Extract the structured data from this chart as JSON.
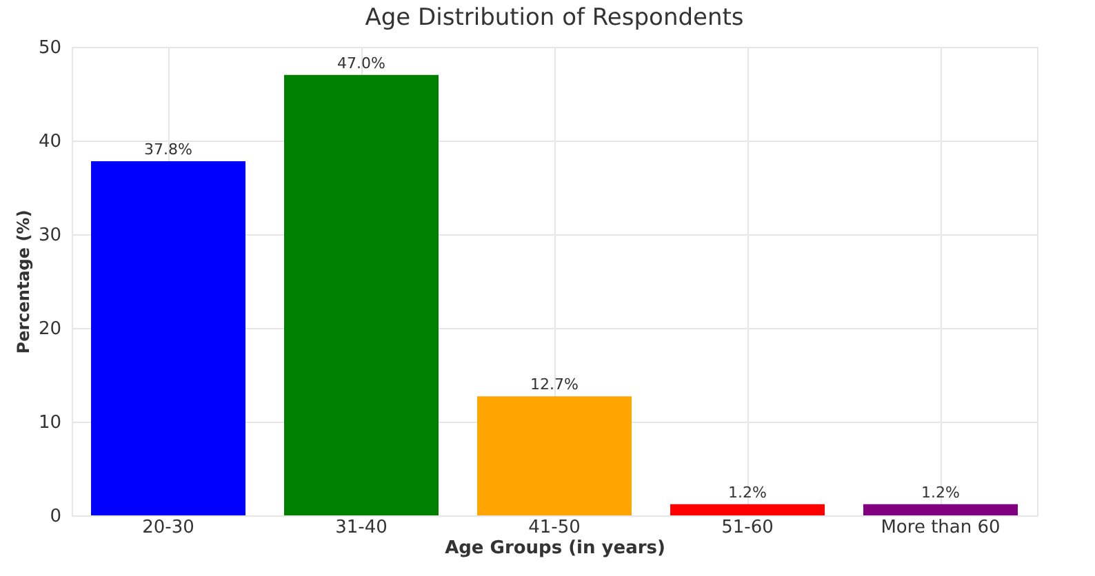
{
  "chart_data": {
    "type": "bar",
    "title": "Age Distribution of Respondents",
    "xlabel": "Age Groups (in years)",
    "ylabel": "Percentage (%)",
    "categories": [
      "20-30",
      "31-40",
      "41-50",
      "51-60",
      "More than 60"
    ],
    "values": [
      37.8,
      47.0,
      12.7,
      1.2,
      1.2
    ],
    "colors": [
      "#0000ff",
      "#008000",
      "#ffa500",
      "#ff0000",
      "#800080"
    ],
    "value_labels": [
      "37.8%",
      "47.0%",
      "12.7%",
      "1.2%",
      "1.2%"
    ],
    "ylim": [
      0,
      50
    ],
    "yticks": [
      0,
      10,
      20,
      30,
      40,
      50
    ],
    "grid": true
  }
}
